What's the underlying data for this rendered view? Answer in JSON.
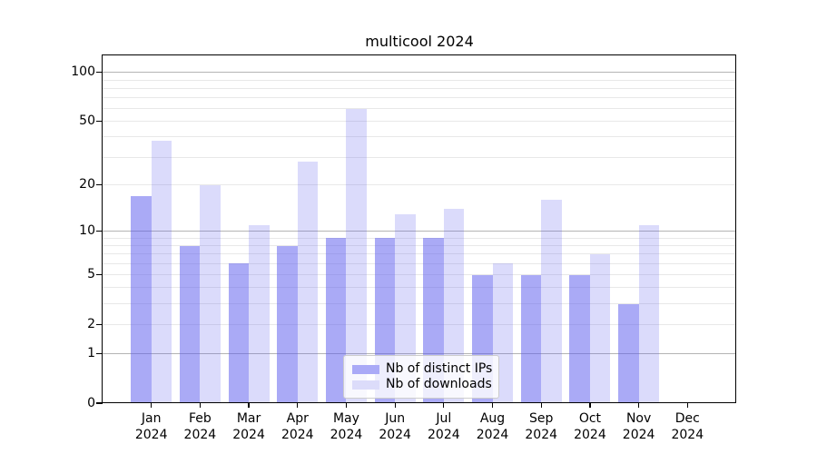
{
  "title": "multicool 2024",
  "chart_data": {
    "type": "bar",
    "title": "multicool 2024",
    "categories": [
      "Jan 2024",
      "Feb 2024",
      "Mar 2024",
      "Apr 2024",
      "May 2024",
      "Jun 2024",
      "Jul 2024",
      "Aug 2024",
      "Sep 2024",
      "Oct 2024",
      "Nov 2024",
      "Dec 2024"
    ],
    "series": [
      {
        "name": "Nb of distinct IPs",
        "values": [
          17,
          8,
          6,
          8,
          9,
          9,
          9,
          5,
          5,
          5,
          3,
          0
        ],
        "color": "rgba(85,85,238,0.5)",
        "legend_color": "#aaaaf7"
      },
      {
        "name": "Nb of downloads",
        "values": [
          38,
          20,
          11,
          28,
          60,
          13,
          14,
          6,
          16,
          7,
          11,
          0
        ],
        "color": "rgba(85,85,238,0.21)",
        "legend_color": "#dcdcfa"
      }
    ],
    "xlabel": "",
    "ylabel": "",
    "y_scale": "log1p",
    "y_ticks": [
      0,
      1,
      2,
      5,
      10,
      20,
      50,
      100
    ],
    "y_major_gridlines": [
      1,
      10,
      100
    ],
    "y_minor_gridlines": [
      2,
      3,
      4,
      5,
      6,
      7,
      8,
      9,
      20,
      30,
      40,
      50,
      60,
      70,
      80,
      90
    ],
    "ylim": [
      0,
      128
    ],
    "grid": true,
    "legend_position": "lower center"
  },
  "colors": {
    "major_grid": "#b4b4b4",
    "minor_grid": "#e8e8e8",
    "axis": "#000000",
    "legend_border": "#cccccc",
    "legend_bg": "rgba(255,255,255,0.8)"
  }
}
